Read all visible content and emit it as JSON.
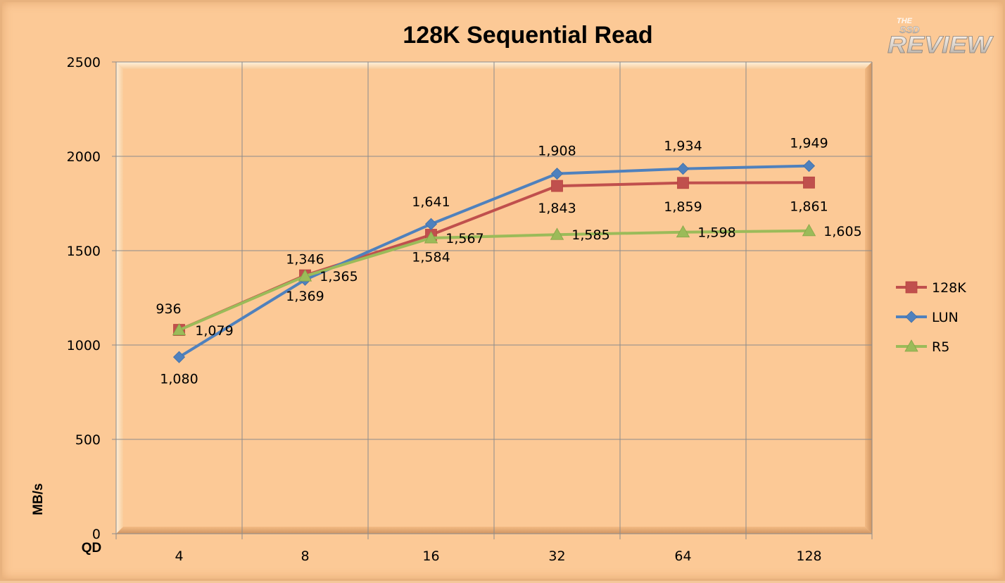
{
  "chart_data": {
    "type": "line",
    "title": "128K Sequential Read",
    "xlabel": "QD",
    "ylabel": "MB/s",
    "categories": [
      "4",
      "8",
      "16",
      "32",
      "64",
      "128"
    ],
    "ylim": [
      0,
      2500
    ],
    "yticks": [
      0,
      500,
      1000,
      1500,
      2000,
      2500
    ],
    "grid": true,
    "legend": "right",
    "series": [
      {
        "name": "128K",
        "color": "#c0504d",
        "marker": "square",
        "values": [
          1080,
          1369,
          1584,
          1843,
          1859,
          1861
        ],
        "labels": [
          "1,080",
          "1,369",
          "1,584",
          "1,843",
          "1,859",
          "1,861"
        ]
      },
      {
        "name": "LUN",
        "color": "#4f81bd",
        "marker": "diamond",
        "values": [
          936,
          1346,
          1641,
          1908,
          1934,
          1949
        ],
        "labels": [
          "936",
          "1,346",
          "1,641",
          "1,908",
          "1,934",
          "1,949"
        ]
      },
      {
        "name": "R5",
        "color": "#9bbb59",
        "marker": "triangle",
        "values": [
          1079,
          1365,
          1567,
          1585,
          1598,
          1605
        ],
        "labels": [
          "1,079",
          "1,365",
          "1,567",
          "1,585",
          "1,598",
          "1,605"
        ]
      }
    ]
  },
  "watermark": {
    "top": "THE",
    "middle": "SSD",
    "bottom": "REVIEW",
    "icon": "ssd-review-logo"
  }
}
